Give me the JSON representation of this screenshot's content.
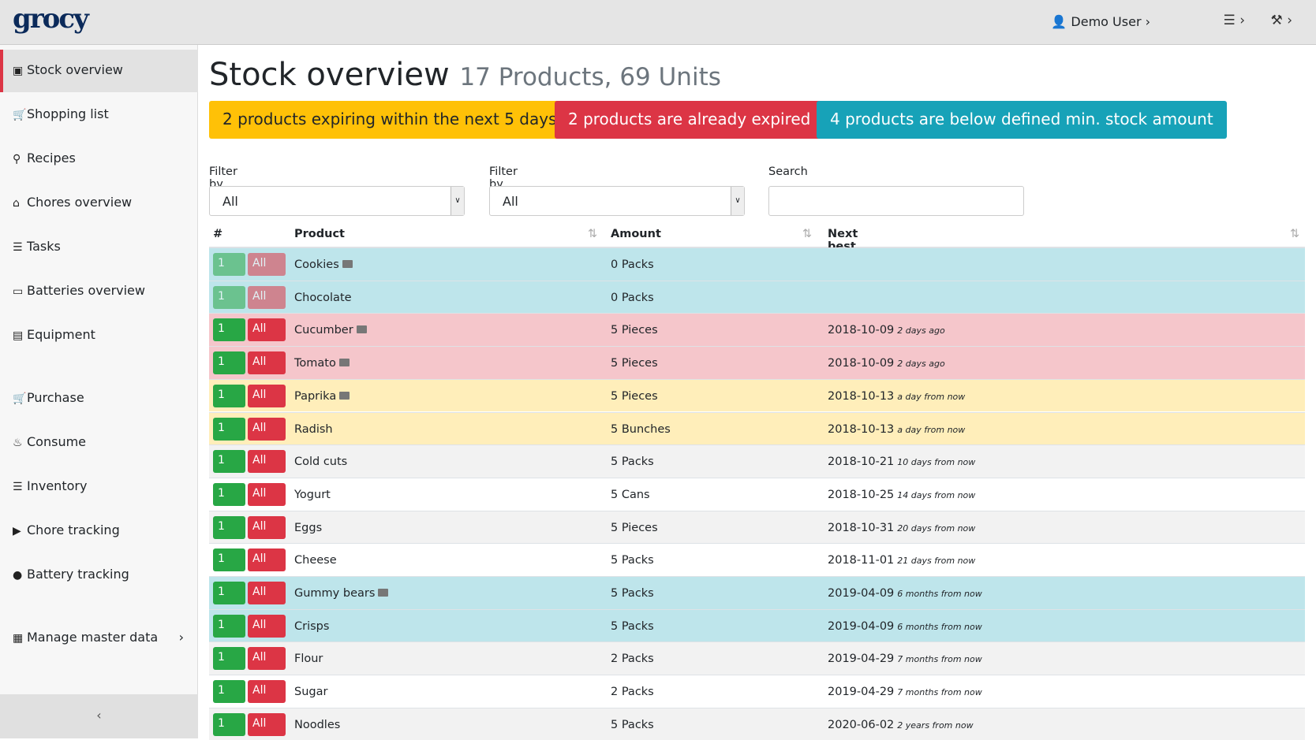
{
  "header": {
    "brand": "grocy",
    "user": "Demo User"
  },
  "sidebar": {
    "items": [
      "Stock overview",
      "Shopping list",
      "Recipes",
      "Chores overview",
      "Tasks",
      "Batteries overview",
      "Equipment",
      "Purchase",
      "Consume",
      "Inventory",
      "Chore tracking",
      "Battery tracking",
      "Manage master data"
    ],
    "active": 0
  },
  "page": {
    "title": "Stock overview",
    "subtitle": "17 Products, 69 Units"
  },
  "alerts": [
    {
      "text": "2 products expiring within the next 5 days",
      "color": "#ffc107",
      "text_color": "#212529"
    },
    {
      "text": "2 products are already expired",
      "color": "#dc3545",
      "text_color": "#ffffff"
    },
    {
      "text": "4 products are below defined min. stock amount",
      "color": "#17a2b8",
      "text_color": "#ffffff"
    }
  ],
  "filters": [
    {
      "label": "Filter by location",
      "value": "All"
    },
    {
      "label": "Filter by status",
      "value": "All"
    },
    {
      "label": "Search",
      "value": ""
    }
  ],
  "table": {
    "headers": [
      "#",
      "Product",
      "Amount",
      "Next best before date"
    ],
    "actions": [
      "1",
      "All"
    ],
    "rows": [
      {
        "product": "Cookies",
        "picture": true,
        "amount": "0 Packs",
        "date": null,
        "relative": null,
        "color": "#bee5eb",
        "faded": true
      },
      {
        "product": "Chocolate",
        "picture": false,
        "amount": "0 Packs",
        "date": null,
        "relative": null,
        "color": "#bee5eb",
        "faded": true
      },
      {
        "product": "Cucumber",
        "picture": true,
        "amount": "5 Pieces",
        "date": "2018-10-09",
        "relative": "2 days ago",
        "color": "#f5c6cb",
        "faded": false
      },
      {
        "product": "Tomato",
        "picture": true,
        "amount": "5 Pieces",
        "date": "2018-10-09",
        "relative": "2 days ago",
        "color": "#f5c6cb",
        "faded": false
      },
      {
        "product": "Paprika",
        "picture": true,
        "amount": "5 Pieces",
        "date": "2018-10-13",
        "relative": "a day from now",
        "color": "#ffeeba",
        "faded": false
      },
      {
        "product": "Radish",
        "picture": false,
        "amount": "5 Bunches",
        "date": "2018-10-13",
        "relative": "a day from now",
        "color": "#ffeeba",
        "faded": false
      },
      {
        "product": "Cold cuts",
        "picture": false,
        "amount": "5 Packs",
        "date": "2018-10-21",
        "relative": "10 days from now",
        "color": "#f2f2f2",
        "faded": false
      },
      {
        "product": "Yogurt",
        "picture": false,
        "amount": "5 Cans",
        "date": "2018-10-25",
        "relative": "14 days from now",
        "color": "#ffffff",
        "faded": false
      },
      {
        "product": "Eggs",
        "picture": false,
        "amount": "5 Pieces",
        "date": "2018-10-31",
        "relative": "20 days from now",
        "color": "#f2f2f2",
        "faded": false
      },
      {
        "product": "Cheese",
        "picture": false,
        "amount": "5 Packs",
        "date": "2018-11-01",
        "relative": "21 days from now",
        "color": "#ffffff",
        "faded": false
      },
      {
        "product": "Gummy bears",
        "picture": true,
        "amount": "5 Packs",
        "date": "2019-04-09",
        "relative": "6 months from now",
        "color": "#bee5eb",
        "faded": false
      },
      {
        "product": "Crisps",
        "picture": false,
        "amount": "5 Packs",
        "date": "2019-04-09",
        "relative": "6 months from now",
        "color": "#bee5eb",
        "faded": false
      },
      {
        "product": "Flour",
        "picture": false,
        "amount": "2 Packs",
        "date": "2019-04-29",
        "relative": "7 months from now",
        "color": "#f2f2f2",
        "faded": false
      },
      {
        "product": "Sugar",
        "picture": false,
        "amount": "2 Packs",
        "date": "2019-04-29",
        "relative": "7 months from now",
        "color": "#ffffff",
        "faded": false
      },
      {
        "product": "Noodles",
        "picture": false,
        "amount": "5 Packs",
        "date": "2020-06-02",
        "relative": "2 years from now",
        "color": "#f2f2f2",
        "faded": false
      }
    ]
  }
}
